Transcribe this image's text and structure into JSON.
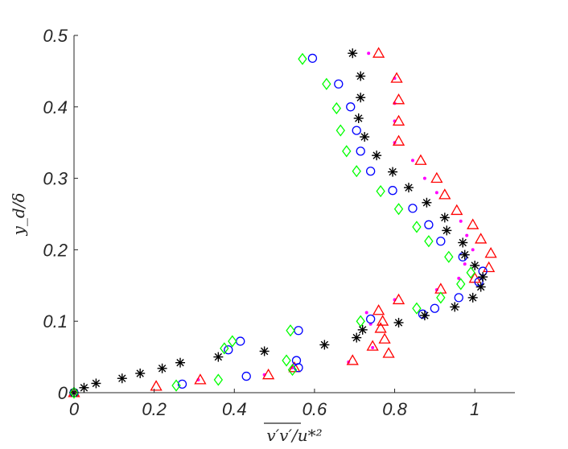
{
  "chart_data": {
    "type": "scatter",
    "title": "",
    "xlabel": "v′v′/u*²",
    "ylabel": "y_d/δ",
    "xlim": [
      0,
      1.1
    ],
    "ylim": [
      0,
      0.5
    ],
    "xticks": [
      0,
      0.2,
      0.4,
      0.6,
      0.8,
      1
    ],
    "xtick_labels": [
      "0",
      "0.2",
      "0.4",
      "0.6",
      "0.8",
      "1"
    ],
    "yticks": [
      0,
      0.1,
      0.2,
      0.3,
      0.4,
      0.5
    ],
    "ytick_labels": [
      "0",
      "0.1",
      "0.2",
      "0.3",
      "0.4",
      "0.5"
    ],
    "grid": false,
    "legend": "none",
    "series": [
      {
        "name": "dots",
        "marker": "dot",
        "color": "#ff00ff",
        "points": [
          [
            0.0,
            0.0
          ],
          [
            0.31,
            0.018
          ],
          [
            0.475,
            0.025
          ],
          [
            0.545,
            0.035
          ],
          [
            0.685,
            0.043
          ],
          [
            0.745,
            0.063
          ],
          [
            0.74,
            0.096
          ],
          [
            0.73,
            0.112
          ],
          [
            0.8,
            0.13
          ],
          [
            0.905,
            0.144
          ],
          [
            0.96,
            0.16
          ],
          [
            0.975,
            0.18
          ],
          [
            0.995,
            0.2
          ],
          [
            0.98,
            0.22
          ],
          [
            0.965,
            0.24
          ],
          [
            0.905,
            0.28
          ],
          [
            0.875,
            0.3
          ],
          [
            0.845,
            0.325
          ],
          [
            0.8,
            0.35
          ],
          [
            0.8,
            0.38
          ],
          [
            0.8,
            0.405
          ],
          [
            0.8,
            0.44
          ],
          [
            0.735,
            0.475
          ]
        ]
      },
      {
        "name": "triangles",
        "marker": "triangle",
        "color": "#ff0000",
        "points": [
          [
            0.0,
            0.0
          ],
          [
            0.205,
            0.009
          ],
          [
            0.315,
            0.018
          ],
          [
            0.485,
            0.025
          ],
          [
            0.55,
            0.035
          ],
          [
            0.695,
            0.045
          ],
          [
            0.785,
            0.055
          ],
          [
            0.745,
            0.065
          ],
          [
            0.775,
            0.075
          ],
          [
            0.765,
            0.09
          ],
          [
            0.77,
            0.1
          ],
          [
            0.76,
            0.115
          ],
          [
            0.81,
            0.13
          ],
          [
            0.915,
            0.145
          ],
          [
            1.0,
            0.16
          ],
          [
            1.035,
            0.175
          ],
          [
            1.04,
            0.195
          ],
          [
            1.015,
            0.215
          ],
          [
            0.995,
            0.235
          ],
          [
            0.955,
            0.255
          ],
          [
            0.925,
            0.277
          ],
          [
            0.905,
            0.3
          ],
          [
            0.865,
            0.325
          ],
          [
            0.81,
            0.352
          ],
          [
            0.81,
            0.38
          ],
          [
            0.81,
            0.41
          ],
          [
            0.805,
            0.44
          ],
          [
            0.76,
            0.475
          ]
        ]
      },
      {
        "name": "circles",
        "marker": "circle",
        "color": "#0000ff",
        "points": [
          [
            0.0,
            0.0
          ],
          [
            0.27,
            0.012
          ],
          [
            0.43,
            0.023
          ],
          [
            0.56,
            0.035
          ],
          [
            0.555,
            0.045
          ],
          [
            0.56,
            0.087
          ],
          [
            0.415,
            0.072
          ],
          [
            0.385,
            0.06
          ],
          [
            0.74,
            0.103
          ],
          [
            0.87,
            0.11
          ],
          [
            0.9,
            0.118
          ],
          [
            0.96,
            0.133
          ],
          [
            1.01,
            0.155
          ],
          [
            1.02,
            0.17
          ],
          [
            0.97,
            0.19
          ],
          [
            0.915,
            0.212
          ],
          [
            0.885,
            0.235
          ],
          [
            0.845,
            0.258
          ],
          [
            0.795,
            0.283
          ],
          [
            0.74,
            0.31
          ],
          [
            0.715,
            0.338
          ],
          [
            0.705,
            0.367
          ],
          [
            0.69,
            0.4
          ],
          [
            0.66,
            0.432
          ],
          [
            0.595,
            0.468
          ]
        ]
      },
      {
        "name": "stars",
        "marker": "star",
        "color": "#000000",
        "points": [
          [
            0.0,
            0.0
          ],
          [
            0.025,
            0.007
          ],
          [
            0.055,
            0.013
          ],
          [
            0.12,
            0.02
          ],
          [
            0.165,
            0.027
          ],
          [
            0.22,
            0.034
          ],
          [
            0.265,
            0.042
          ],
          [
            0.36,
            0.05
          ],
          [
            0.475,
            0.058
          ],
          [
            0.625,
            0.067
          ],
          [
            0.705,
            0.077
          ],
          [
            0.72,
            0.088
          ],
          [
            0.81,
            0.098
          ],
          [
            0.875,
            0.108
          ],
          [
            0.95,
            0.12
          ],
          [
            0.995,
            0.133
          ],
          [
            1.015,
            0.148
          ],
          [
            1.02,
            0.162
          ],
          [
            1.0,
            0.178
          ],
          [
            0.975,
            0.193
          ],
          [
            0.97,
            0.21
          ],
          [
            0.93,
            0.227
          ],
          [
            0.925,
            0.245
          ],
          [
            0.88,
            0.266
          ],
          [
            0.835,
            0.287
          ],
          [
            0.795,
            0.309
          ],
          [
            0.755,
            0.332
          ],
          [
            0.725,
            0.358
          ],
          [
            0.71,
            0.384
          ],
          [
            0.715,
            0.413
          ],
          [
            0.715,
            0.443
          ],
          [
            0.695,
            0.475
          ]
        ]
      },
      {
        "name": "diamonds",
        "marker": "diamond",
        "color": "#00ff00",
        "points": [
          [
            0.0,
            0.0
          ],
          [
            0.255,
            0.01
          ],
          [
            0.36,
            0.018
          ],
          [
            0.545,
            0.032
          ],
          [
            0.53,
            0.045
          ],
          [
            0.54,
            0.087
          ],
          [
            0.375,
            0.062
          ],
          [
            0.395,
            0.072
          ],
          [
            0.715,
            0.1
          ],
          [
            0.855,
            0.118
          ],
          [
            0.915,
            0.133
          ],
          [
            0.965,
            0.152
          ],
          [
            0.99,
            0.168
          ],
          [
            0.935,
            0.19
          ],
          [
            0.885,
            0.212
          ],
          [
            0.855,
            0.232
          ],
          [
            0.81,
            0.257
          ],
          [
            0.765,
            0.282
          ],
          [
            0.705,
            0.31
          ],
          [
            0.68,
            0.338
          ],
          [
            0.665,
            0.367
          ],
          [
            0.655,
            0.398
          ],
          [
            0.63,
            0.432
          ],
          [
            0.57,
            0.467
          ]
        ]
      }
    ]
  }
}
